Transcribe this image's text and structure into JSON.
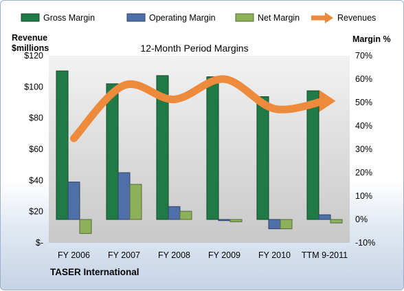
{
  "company": "TASER International",
  "chart_data": {
    "type": "bar",
    "title": "12-Month Period Margins",
    "y_left_label": [
      "Revenue",
      "$millions"
    ],
    "y_right_label": "Margin %",
    "categories": [
      "FY 2006",
      "FY 2007",
      "FY 2008",
      "FY 2009",
      "FY 2010",
      "TTM 9-2011"
    ],
    "y_left_ticks": [
      "$-",
      "$20",
      "$40",
      "$60",
      "$80",
      "$100",
      "$120"
    ],
    "y_left_range": [
      0,
      120
    ],
    "y_right_ticks": [
      "-10%",
      "0%",
      "10%",
      "20%",
      "30%",
      "40%",
      "50%",
      "60%",
      "70%"
    ],
    "y_right_range": [
      -10,
      70
    ],
    "legend_position": "top",
    "series": [
      {
        "name": "Gross Margin",
        "axis": "right",
        "unit": "%",
        "color": "#1f7a45",
        "values": [
          63.5,
          58,
          61.5,
          61,
          52.5,
          55
        ]
      },
      {
        "name": "Operating Margin",
        "axis": "right",
        "unit": "%",
        "color": "#4f6fa8",
        "values": [
          16,
          20,
          5.5,
          -0.5,
          -4,
          2
        ]
      },
      {
        "name": "Net Margin",
        "axis": "right",
        "unit": "%",
        "color": "#8db05a",
        "values": [
          -6,
          15,
          3.5,
          -1,
          -4,
          -1.5
        ]
      },
      {
        "name": "Revenues",
        "axis": "left",
        "unit": "$M",
        "color": "#ed8a3c",
        "type": "line",
        "values": [
          67,
          101,
          92,
          105,
          86,
          91
        ]
      }
    ],
    "grid": false
  }
}
